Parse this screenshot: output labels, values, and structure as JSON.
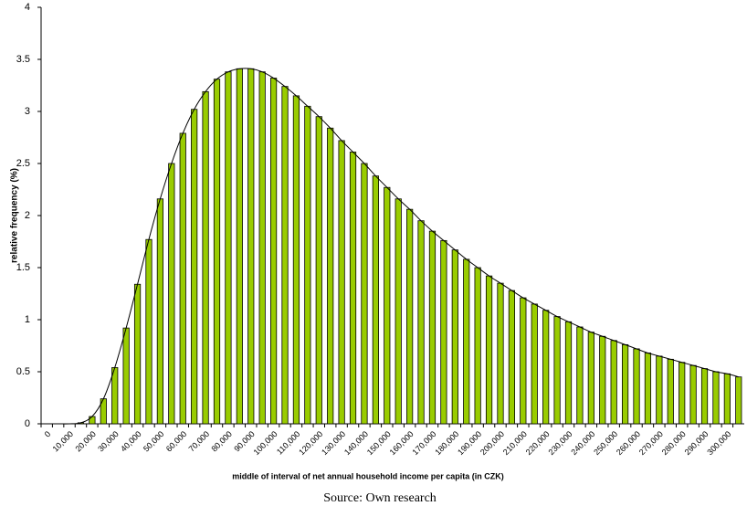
{
  "chart_data": {
    "type": "bar",
    "y_label": "relative frequency (%)",
    "x_label": "middle of interval of net annual household income per capita (in CZK)",
    "caption": "Source: Own research",
    "categories": [
      "0",
      null,
      "10,000",
      null,
      "20,000",
      null,
      "30,000",
      null,
      "40,000",
      null,
      "50,000",
      null,
      "60,000",
      null,
      "70,000",
      null,
      "80,000",
      null,
      "90,000",
      null,
      "100,000",
      null,
      "110,000",
      null,
      "120,000",
      null,
      "130,000",
      null,
      "140,000",
      null,
      "150,000",
      null,
      "160,000",
      null,
      "170,000",
      null,
      "180,000",
      null,
      "190,000",
      null,
      "200,000",
      null,
      "210,000",
      null,
      "220,000",
      null,
      "230,000",
      null,
      "240,000",
      null,
      "250,000",
      null,
      "260,000",
      null,
      "270,000",
      null,
      "280,000",
      null,
      "290,000",
      null,
      "300,000",
      null
    ],
    "values": [
      0,
      0,
      0,
      0.01,
      0.07,
      0.24,
      0.54,
      0.92,
      1.34,
      1.77,
      2.16,
      2.5,
      2.79,
      3.02,
      3.19,
      3.31,
      3.38,
      3.41,
      3.41,
      3.38,
      3.32,
      3.24,
      3.15,
      3.05,
      2.95,
      2.84,
      2.72,
      2.61,
      2.5,
      2.38,
      2.27,
      2.16,
      2.06,
      1.95,
      1.85,
      1.76,
      1.67,
      1.58,
      1.5,
      1.42,
      1.35,
      1.28,
      1.21,
      1.15,
      1.09,
      1.03,
      0.98,
      0.93,
      0.88,
      0.84,
      0.8,
      0.76,
      0.72,
      0.68,
      0.65,
      0.62,
      0.59,
      0.56,
      0.53,
      0.5,
      0.48,
      0.45
    ],
    "color": "#99cc00",
    "line_color": "#000000",
    "ylim": [
      0,
      4
    ],
    "yticks": [
      0,
      0.5,
      1,
      1.5,
      2,
      2.5,
      3,
      3.5,
      4
    ],
    "grid": false
  }
}
